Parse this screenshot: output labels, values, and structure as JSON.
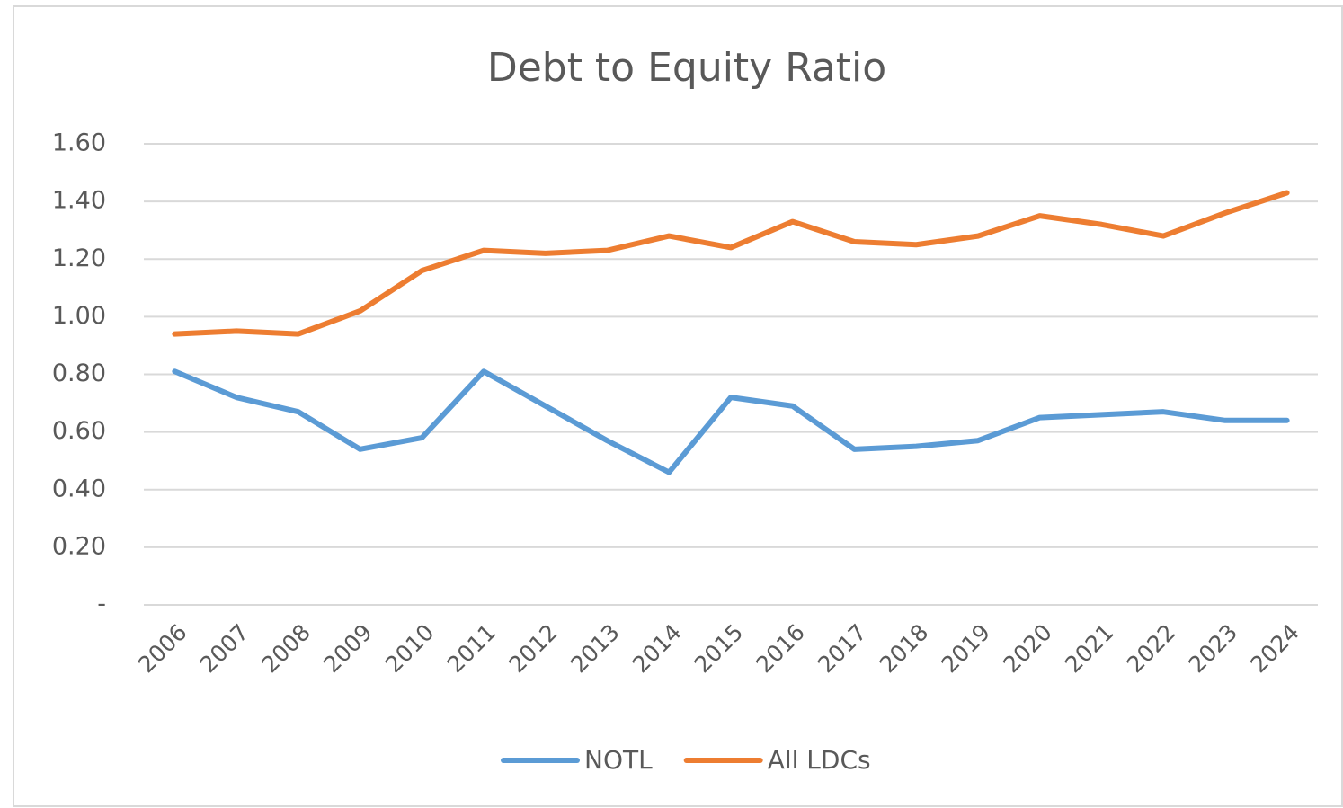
{
  "chart_data": {
    "type": "line",
    "title": "Debt to Equity Ratio",
    "categories": [
      "2006",
      "2007",
      "2008",
      "2009",
      "2010",
      "2011",
      "2012",
      "2013",
      "2014",
      "2015",
      "2016",
      "2017",
      "2018",
      "2019",
      "2020",
      "2021",
      "2022",
      "2023",
      "2024"
    ],
    "series": [
      {
        "name": "NOTL",
        "color": "#5b9bd5",
        "values": [
          0.81,
          0.72,
          0.67,
          0.54,
          0.58,
          0.81,
          0.69,
          0.57,
          0.46,
          0.72,
          0.69,
          0.54,
          0.55,
          0.57,
          0.65,
          0.66,
          0.67,
          0.64,
          0.64
        ]
      },
      {
        "name": "All LDCs",
        "color": "#ed7d31",
        "values": [
          0.94,
          0.95,
          0.94,
          1.02,
          1.16,
          1.23,
          1.22,
          1.23,
          1.28,
          1.24,
          1.33,
          1.26,
          1.25,
          1.28,
          1.35,
          1.32,
          1.28,
          1.36,
          1.43
        ]
      }
    ],
    "ylim": [
      0,
      1.6
    ],
    "yticks": [
      {
        "value": 0,
        "label": "-"
      },
      {
        "value": 0.2,
        "label": "0.20"
      },
      {
        "value": 0.4,
        "label": "0.40"
      },
      {
        "value": 0.6,
        "label": "0.60"
      },
      {
        "value": 0.8,
        "label": "0.80"
      },
      {
        "value": 1.0,
        "label": "1.00"
      },
      {
        "value": 1.2,
        "label": "1.20"
      },
      {
        "value": 1.4,
        "label": "1.40"
      },
      {
        "value": 1.6,
        "label": "1.60"
      }
    ],
    "grid": true,
    "legend": "bottom"
  }
}
